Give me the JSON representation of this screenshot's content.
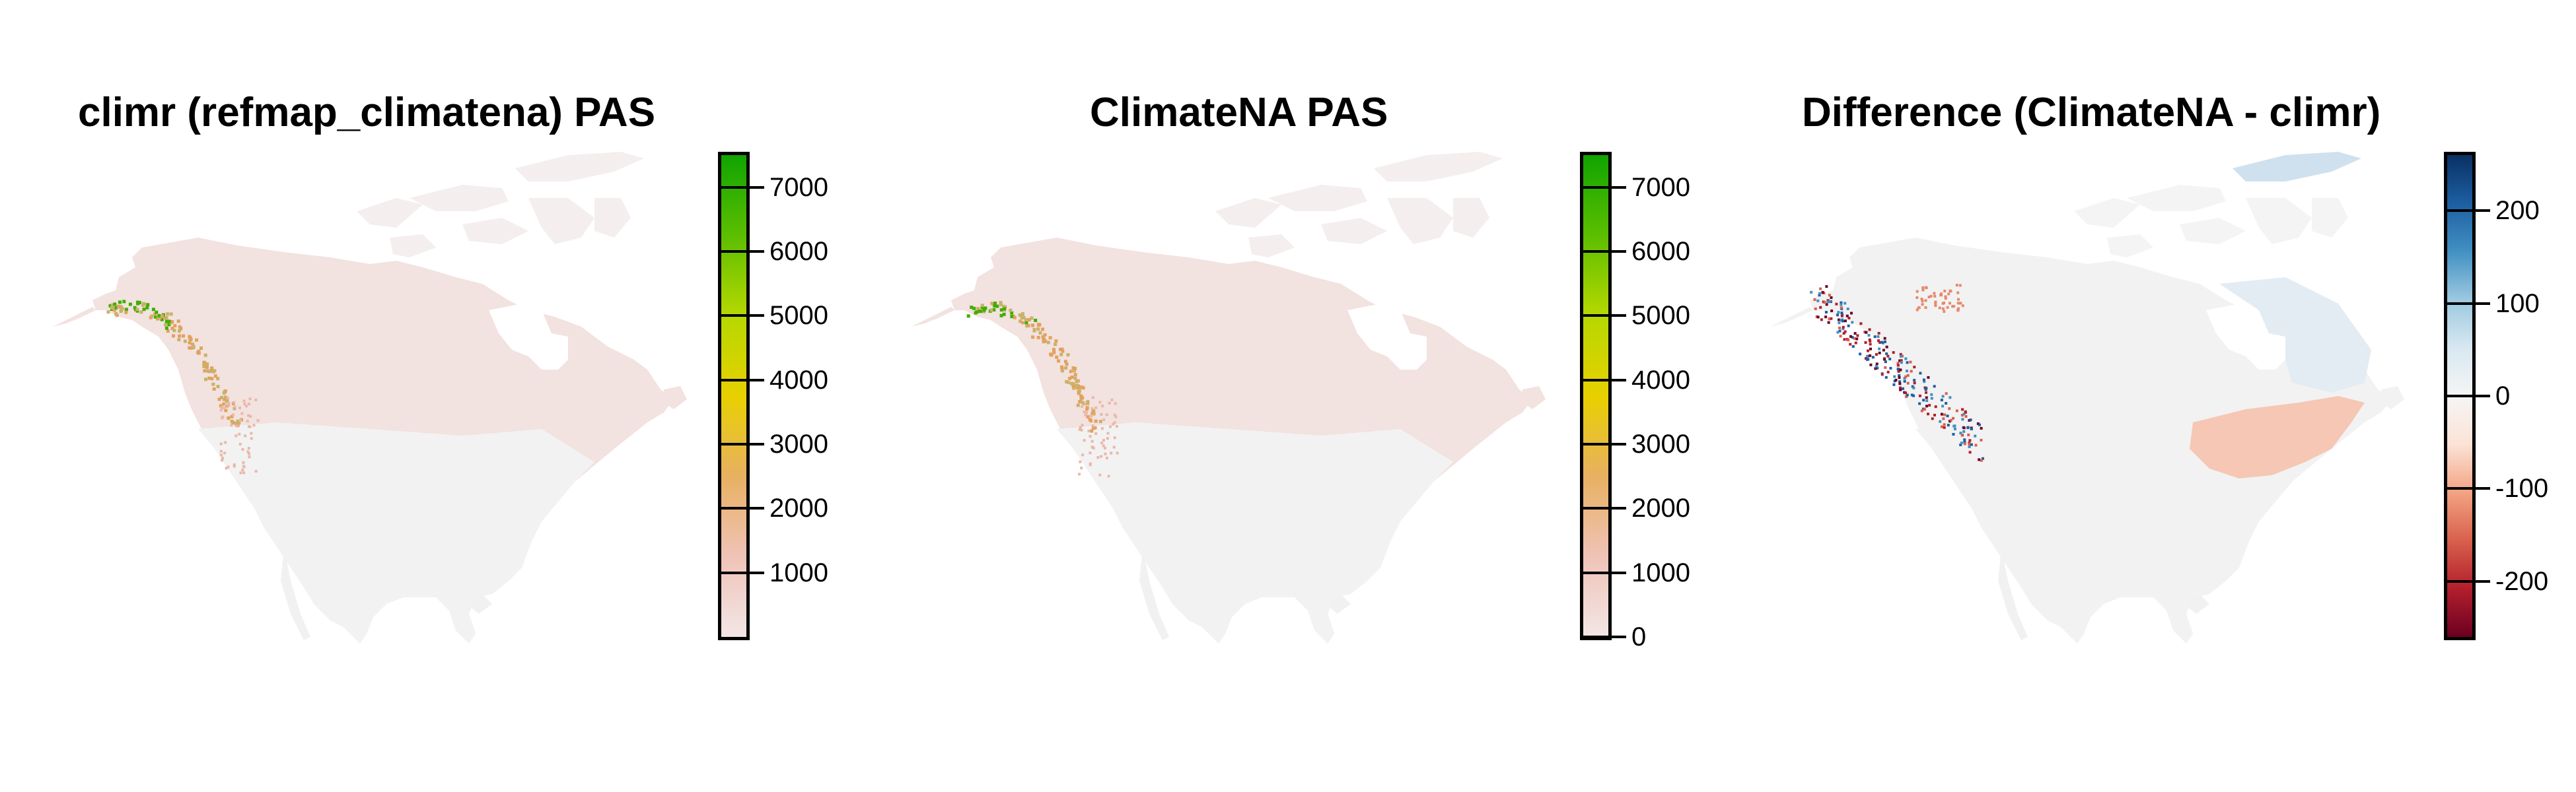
{
  "panels": [
    {
      "title": "climr (refmap_climatena) PAS",
      "legend": {
        "palette": [
          "#f3e6e6",
          "#efc3b7",
          "#e8b062",
          "#e8d000",
          "#b6d800",
          "#5cbe00",
          "#10a400"
        ],
        "ticks": [
          "1000",
          "2000",
          "3000",
          "4000",
          "5000",
          "6000",
          "7000"
        ],
        "tick_values": [
          1000,
          2000,
          3000,
          4000,
          5000,
          6000,
          7000
        ],
        "range": [
          0,
          7500
        ]
      },
      "map": {
        "base_color": "#f2e2e0",
        "highlight": "coastal-mountains"
      }
    },
    {
      "title": "ClimateNA PAS",
      "legend": {
        "palette": [
          "#f3e6e6",
          "#efc3b7",
          "#e8b062",
          "#e8d000",
          "#b6d800",
          "#5cbe00",
          "#10a400"
        ],
        "ticks": [
          "0",
          "1000",
          "2000",
          "3000",
          "4000",
          "5000",
          "6000",
          "7000"
        ],
        "tick_values": [
          0,
          1000,
          2000,
          3000,
          4000,
          5000,
          6000,
          7000
        ],
        "range": [
          0,
          7500
        ]
      },
      "map": {
        "base_color": "#f2e2e0",
        "highlight": "coastal-mountains"
      }
    },
    {
      "title": "Difference (ClimateNA - climr)",
      "legend": {
        "palette": [
          "#6b0021",
          "#b21f2c",
          "#d8604d",
          "#f3a383",
          "#fbe3d6",
          "#f5f5f5",
          "#d8e8f1",
          "#9cc8e0",
          "#4290c3",
          "#1d5fa2",
          "#093063"
        ],
        "ticks": [
          "-200",
          "-100",
          "0",
          "100",
          "200"
        ],
        "tick_values": [
          -200,
          -100,
          0,
          100,
          200
        ],
        "range": [
          -260,
          260
        ]
      },
      "map": {
        "base_color": "#f2f2f2",
        "highlight": "difference"
      }
    }
  ]
}
